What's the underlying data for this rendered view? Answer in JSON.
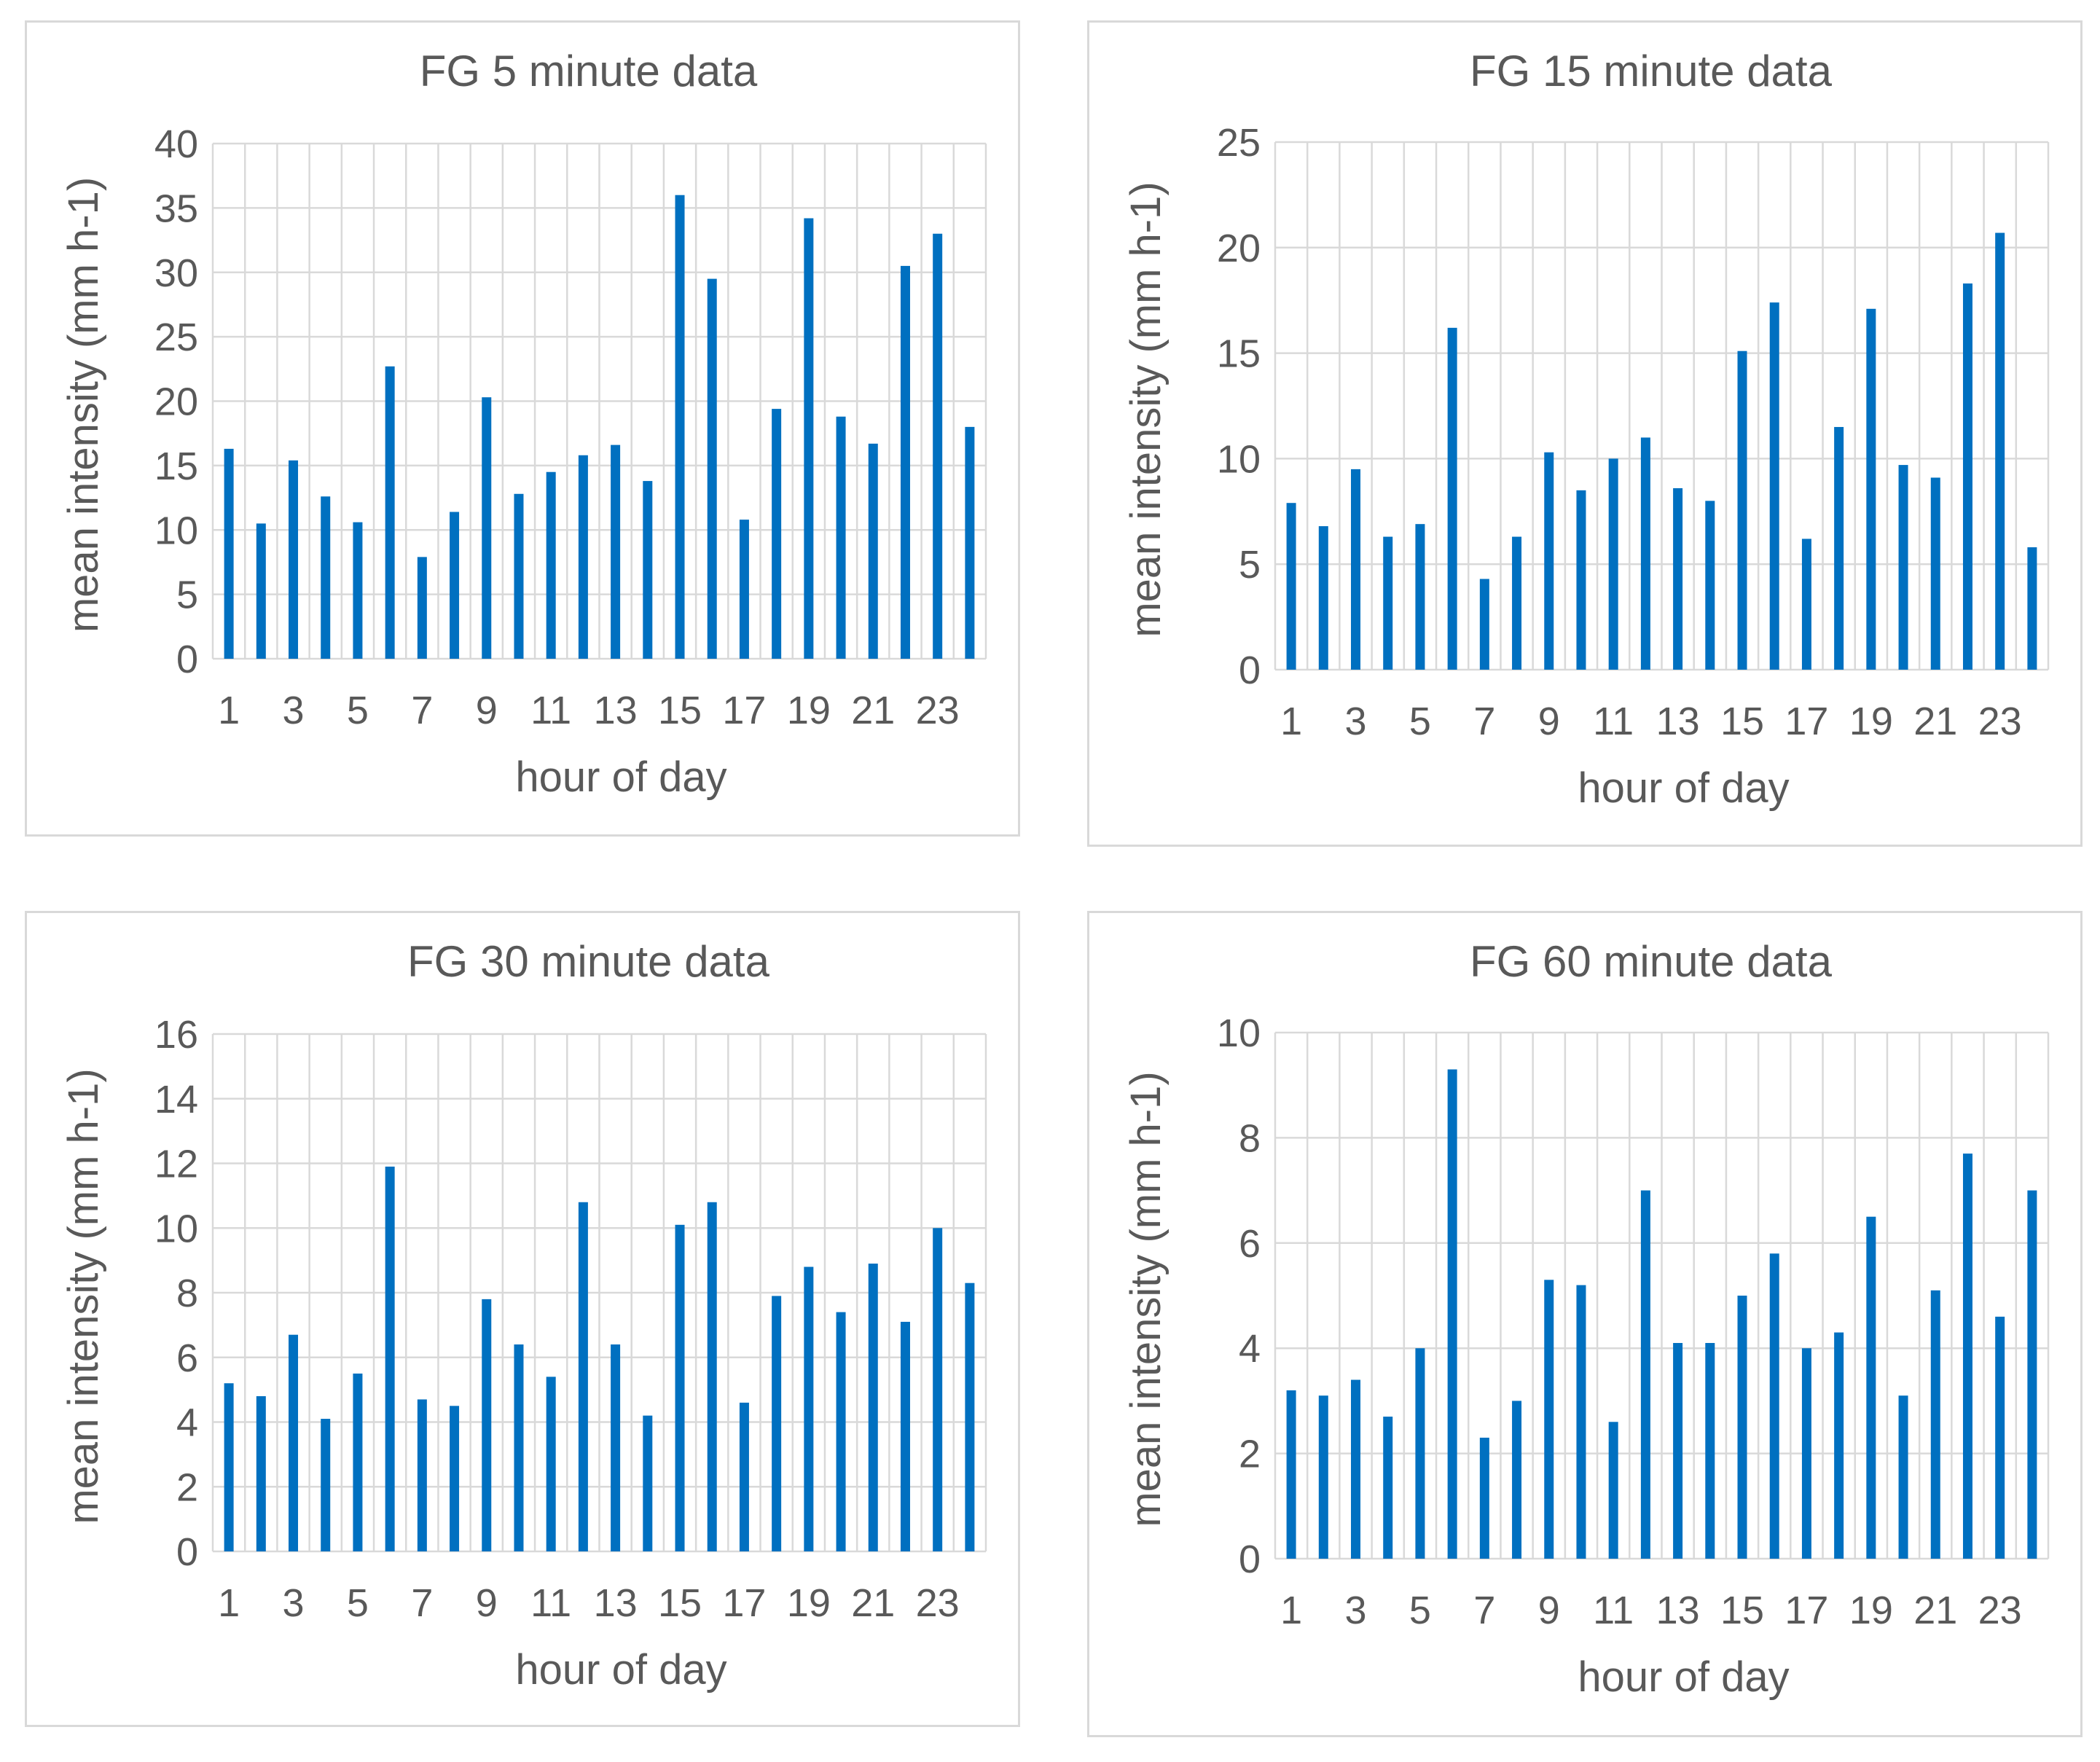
{
  "chart_data": [
    {
      "type": "bar",
      "title": "FG 5 minute data",
      "xlabel": "hour of day",
      "ylabel": "mean intensity (mm h-1)",
      "ylim": [
        0,
        40
      ],
      "yticks": [
        0,
        5,
        10,
        15,
        20,
        25,
        30,
        35,
        40
      ],
      "categories": [
        "1",
        "2",
        "3",
        "4",
        "5",
        "6",
        "7",
        "8",
        "9",
        "10",
        "11",
        "12",
        "13",
        "14",
        "15",
        "16",
        "17",
        "18",
        "19",
        "20",
        "21",
        "22",
        "23",
        "24"
      ],
      "tick_labels": [
        "1",
        "3",
        "5",
        "7",
        "9",
        "11",
        "13",
        "15",
        "17",
        "19",
        "21",
        "23"
      ],
      "values": [
        16.3,
        10.5,
        15.4,
        12.6,
        10.6,
        22.7,
        7.9,
        11.4,
        20.3,
        12.8,
        14.5,
        15.8,
        16.6,
        13.8,
        36.0,
        29.5,
        10.8,
        19.4,
        34.2,
        18.8,
        16.7,
        30.5,
        33.0,
        18.0
      ],
      "grid": true,
      "color": "#0070c0"
    },
    {
      "type": "bar",
      "title": "FG 15 minute data",
      "xlabel": "hour of day",
      "ylabel": "mean intensity (mm h-1)",
      "ylim": [
        0,
        25
      ],
      "yticks": [
        0,
        5,
        10,
        15,
        20,
        25
      ],
      "categories": [
        "1",
        "2",
        "3",
        "4",
        "5",
        "6",
        "7",
        "8",
        "9",
        "10",
        "11",
        "12",
        "13",
        "14",
        "15",
        "16",
        "17",
        "18",
        "19",
        "20",
        "21",
        "22",
        "23",
        "24"
      ],
      "tick_labels": [
        "1",
        "3",
        "5",
        "7",
        "9",
        "11",
        "13",
        "15",
        "17",
        "19",
        "21",
        "23"
      ],
      "values": [
        7.9,
        6.8,
        9.5,
        6.3,
        6.9,
        16.2,
        4.3,
        6.3,
        10.3,
        8.5,
        10.0,
        11.0,
        8.6,
        8.0,
        15.1,
        17.4,
        6.2,
        11.5,
        17.1,
        9.7,
        9.1,
        18.3,
        20.7,
        5.8
      ],
      "grid": true,
      "color": "#0070c0"
    },
    {
      "type": "bar",
      "title": "FG 30 minute data",
      "xlabel": "hour of day",
      "ylabel": "mean intensity (mm h-1)",
      "ylim": [
        0,
        16
      ],
      "yticks": [
        0,
        2,
        4,
        6,
        8,
        10,
        12,
        14,
        16
      ],
      "categories": [
        "1",
        "2",
        "3",
        "4",
        "5",
        "6",
        "7",
        "8",
        "9",
        "10",
        "11",
        "12",
        "13",
        "14",
        "15",
        "16",
        "17",
        "18",
        "19",
        "20",
        "21",
        "22",
        "23",
        "24"
      ],
      "tick_labels": [
        "1",
        "3",
        "5",
        "7",
        "9",
        "11",
        "13",
        "15",
        "17",
        "19",
        "21",
        "23"
      ],
      "values": [
        5.2,
        4.8,
        6.7,
        4.1,
        5.5,
        11.9,
        4.7,
        4.5,
        7.8,
        6.4,
        5.4,
        10.8,
        6.4,
        4.2,
        10.1,
        10.8,
        4.6,
        7.9,
        8.8,
        7.4,
        8.9,
        7.1,
        10.0,
        8.3
      ],
      "grid": true,
      "color": "#0070c0"
    },
    {
      "type": "bar",
      "title": "FG 60 minute data",
      "xlabel": "hour of day",
      "ylabel": "mean intensity (mm h-1)",
      "ylim": [
        0,
        10
      ],
      "yticks": [
        0,
        2,
        4,
        6,
        8,
        10
      ],
      "categories": [
        "1",
        "2",
        "3",
        "4",
        "5",
        "6",
        "7",
        "8",
        "9",
        "10",
        "11",
        "12",
        "13",
        "14",
        "15",
        "16",
        "17",
        "18",
        "19",
        "20",
        "21",
        "22",
        "23",
        "24"
      ],
      "tick_labels": [
        "1",
        "3",
        "5",
        "7",
        "9",
        "11",
        "13",
        "15",
        "17",
        "19",
        "21",
        "23"
      ],
      "values": [
        3.2,
        3.1,
        3.4,
        2.7,
        4.0,
        9.3,
        2.3,
        3.0,
        5.3,
        5.2,
        2.6,
        7.0,
        4.1,
        4.1,
        5.0,
        5.8,
        4.0,
        4.3,
        6.5,
        3.1,
        5.1,
        7.7,
        4.6,
        7.0
      ],
      "grid": true,
      "color": "#0070c0"
    }
  ]
}
